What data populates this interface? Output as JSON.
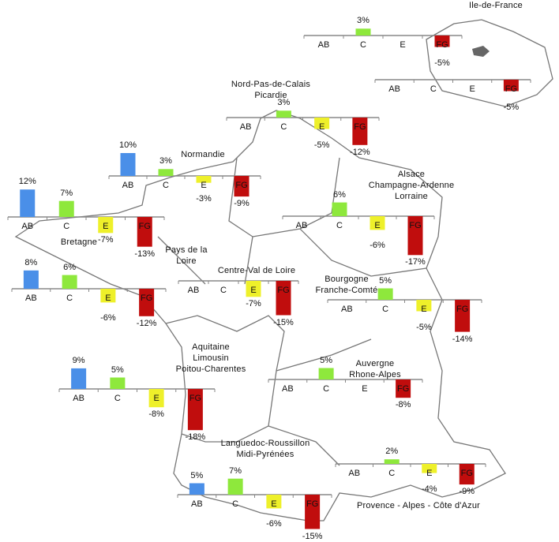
{
  "categories": [
    "AB",
    "C",
    "E",
    "FG"
  ],
  "colors": {
    "AB": "#4a8fe8",
    "C": "#8ee83c",
    "E": "#eef02a",
    "FG": "#c00d0d",
    "axis": "#888888",
    "map_outline": "#777777"
  },
  "regions": [
    {
      "id": "idf-1",
      "name": [],
      "values": [
        null,
        3,
        null,
        -5
      ]
    },
    {
      "id": "idf-2",
      "name": [
        "Ile-de-France"
      ],
      "values": [
        null,
        null,
        null,
        -5
      ]
    },
    {
      "id": "nord",
      "name": [
        "Nord-Pas-de-Calais",
        "Picardie"
      ],
      "values": [
        null,
        3,
        -5,
        -12
      ]
    },
    {
      "id": "normandie",
      "name": [
        "Normandie"
      ],
      "values": [
        10,
        3,
        -3,
        -9
      ]
    },
    {
      "id": "bretagne",
      "name": [
        "Bretagne"
      ],
      "values": [
        12,
        7,
        -7,
        -13
      ]
    },
    {
      "id": "pdl",
      "name": [
        "Pays de la",
        "Loire"
      ],
      "values": [
        8,
        6,
        -6,
        -12
      ]
    },
    {
      "id": "centre",
      "name": [
        "Centre-Val de Loire"
      ],
      "values": [
        null,
        null,
        -7,
        -15
      ]
    },
    {
      "id": "acal",
      "name": [
        "Alsace",
        "Champagne-Ardenne",
        "Lorraine"
      ],
      "values": [
        null,
        6,
        -6,
        -17
      ]
    },
    {
      "id": "bfc",
      "name": [
        "Bourgogne",
        "Franche-Comté"
      ],
      "values": [
        null,
        5,
        -5,
        -14
      ]
    },
    {
      "id": "alpc",
      "name": [
        "Aquitaine",
        "Limousin",
        "Poitou-Charentes"
      ],
      "values": [
        9,
        5,
        -8,
        -18
      ]
    },
    {
      "id": "ara",
      "name": [
        "Auvergne",
        "Rhone-Alpes"
      ],
      "values": [
        null,
        5,
        null,
        -8
      ]
    },
    {
      "id": "lrmp",
      "name": [
        "Languedoc-Roussillon",
        "Midi-Pyrénées"
      ],
      "values": [
        5,
        7,
        -6,
        -15
      ]
    },
    {
      "id": "paca",
      "name": [
        "Provence - Alpes - Côte d'Azur"
      ],
      "values": [
        null,
        2,
        -4,
        -9
      ]
    }
  ]
}
